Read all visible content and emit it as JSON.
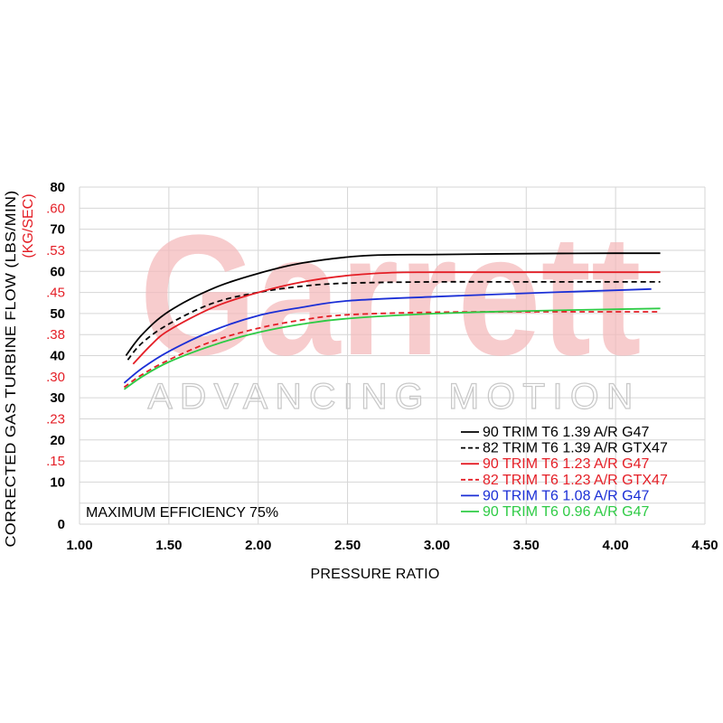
{
  "watermark": {
    "brand": "Garrett",
    "tagline": "ADVANCING MOTION"
  },
  "chart_data": {
    "type": "line",
    "xlabel": "PRESSURE RATIO",
    "ylabel": "CORRECTED GAS TURBINE FLOW (LBS/MIN)",
    "ylabel_secondary": "(KG/SEC)",
    "xlim": [
      1.0,
      4.5
    ],
    "ylim": [
      0,
      80
    ],
    "x_ticks": [
      "1.00",
      "1.50",
      "2.00",
      "2.50",
      "3.00",
      "3.50",
      "4.00",
      "4.50"
    ],
    "y_ticks": [
      "0",
      "10",
      "20",
      "30",
      "40",
      "50",
      "60",
      "70",
      "80"
    ],
    "y_ticks_secondary": [
      {
        "label": ".15",
        "value": 15
      },
      {
        "label": ".23",
        "value": 25
      },
      {
        "label": ".30",
        "value": 35
      },
      {
        "label": ".38",
        "value": 45
      },
      {
        "label": ".45",
        "value": 55
      },
      {
        "label": ".53",
        "value": 65
      },
      {
        "label": ".60",
        "value": 75
      }
    ],
    "grid": true,
    "legend_position": "bottom-right",
    "annotation": "MAXIMUM EFFICIENCY 75%",
    "series": [
      {
        "name": "90 TRIM T6 1.39 A/R G47",
        "color": "#000000",
        "dash": "solid",
        "x": [
          1.26,
          1.35,
          1.5,
          1.75,
          2.0,
          2.25,
          2.59,
          3.0,
          3.5,
          4.0,
          4.25
        ],
        "y": [
          40.0,
          45.0,
          50.5,
          56.0,
          59.5,
          62.0,
          63.7,
          64.0,
          64.2,
          64.3,
          64.3
        ]
      },
      {
        "name": "82 TRIM T6 1.39 A/R GTX47",
        "color": "#000000",
        "dash": "dashed",
        "x": [
          1.27,
          1.35,
          1.5,
          1.75,
          2.0,
          2.25,
          2.5,
          3.0,
          3.5,
          4.0,
          4.25
        ],
        "y": [
          39.0,
          43.0,
          47.5,
          52.5,
          55.0,
          56.5,
          57.2,
          57.5,
          57.5,
          57.5,
          57.5
        ]
      },
      {
        "name": "90 TRIM T6 1.23 A/R G47",
        "color": "#e41e26",
        "dash": "solid",
        "x": [
          1.3,
          1.4,
          1.5,
          1.75,
          2.0,
          2.25,
          2.5,
          2.75,
          3.0,
          3.5,
          4.0,
          4.25
        ],
        "y": [
          38.0,
          42.5,
          46.0,
          51.5,
          55.0,
          57.5,
          59.0,
          59.7,
          59.8,
          59.8,
          59.8,
          59.8
        ]
      },
      {
        "name": "82 TRIM T6 1.23 A/R GTX47",
        "color": "#e41e26",
        "dash": "dashed",
        "x": [
          1.25,
          1.35,
          1.5,
          1.75,
          2.0,
          2.25,
          2.5,
          3.0,
          3.5,
          4.0,
          4.25
        ],
        "y": [
          32.5,
          35.5,
          39.0,
          43.5,
          46.5,
          48.5,
          49.7,
          50.3,
          50.4,
          50.4,
          50.4
        ]
      },
      {
        "name": "90 TRIM T6 1.08 A/R G47",
        "color": "#1b2fd6",
        "dash": "solid",
        "x": [
          1.25,
          1.35,
          1.5,
          1.75,
          2.0,
          2.25,
          2.5,
          3.0,
          3.5,
          4.0,
          4.2
        ],
        "y": [
          33.5,
          37.0,
          41.0,
          46.0,
          49.5,
          51.5,
          53.0,
          54.0,
          54.8,
          55.5,
          55.8
        ]
      },
      {
        "name": "90 TRIM T6 0.96 A/R G47",
        "color": "#2ecb45",
        "dash": "solid",
        "x": [
          1.25,
          1.35,
          1.5,
          1.75,
          2.0,
          2.25,
          2.5,
          3.0,
          3.5,
          4.0,
          4.25
        ],
        "y": [
          32.0,
          35.0,
          38.5,
          42.5,
          45.5,
          47.5,
          48.8,
          50.0,
          50.6,
          51.0,
          51.2
        ]
      }
    ]
  }
}
